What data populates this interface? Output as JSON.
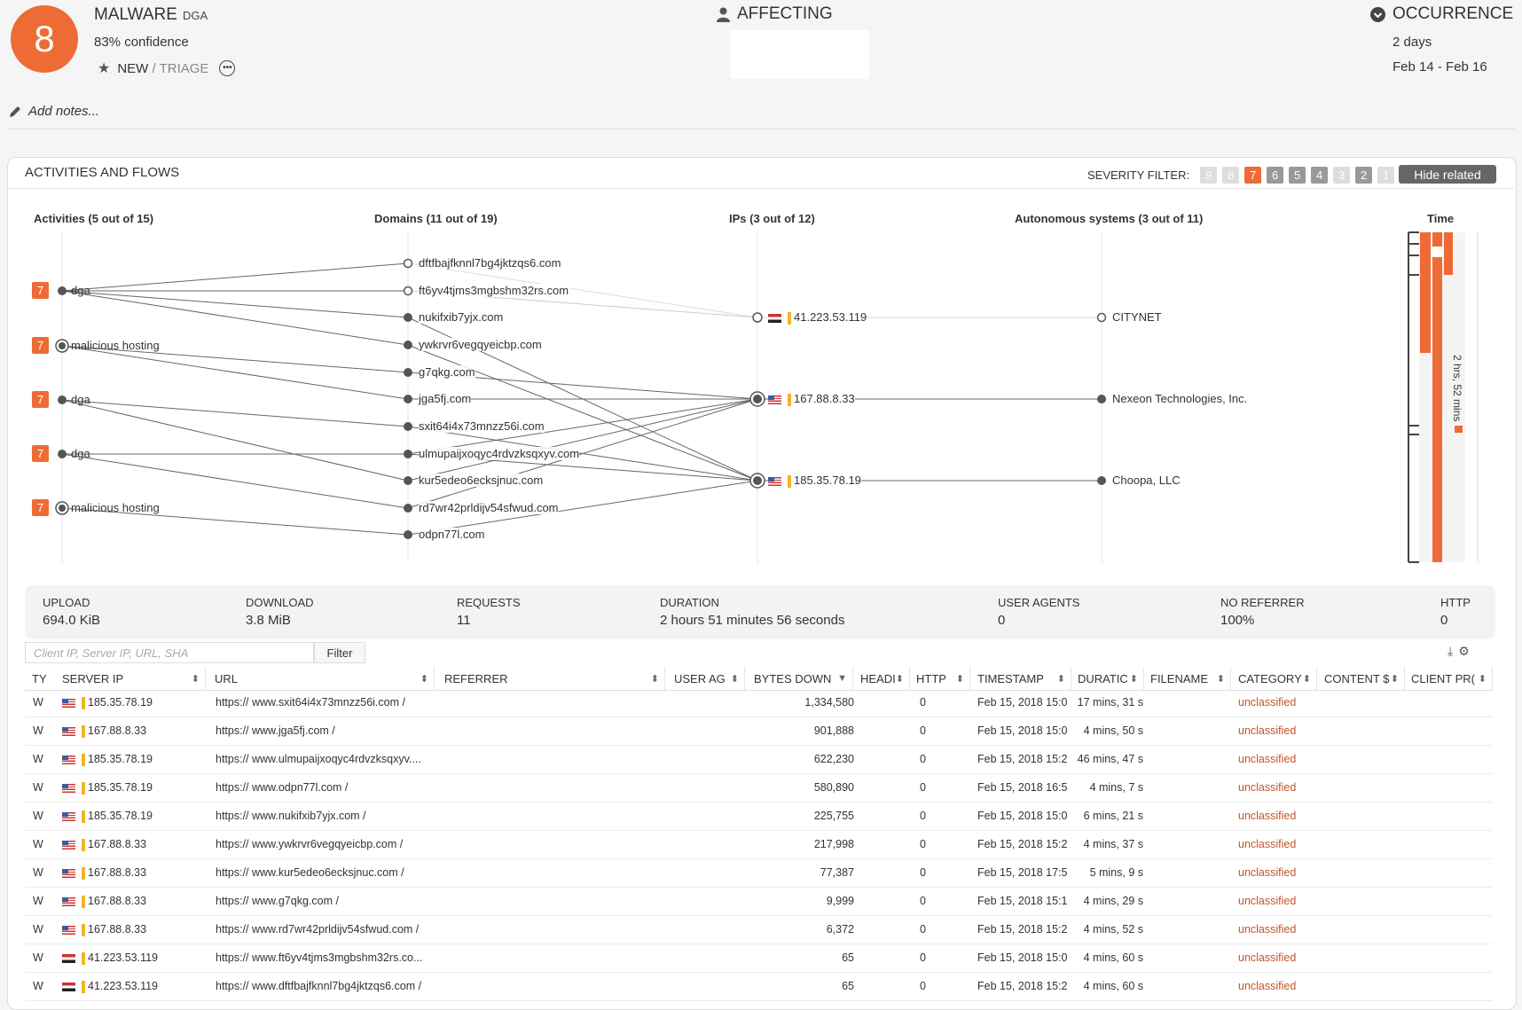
{
  "header": {
    "severity": "8",
    "title": "MALWARE",
    "subtitle": "DGA",
    "confidence": "83% confidence",
    "status_new": "NEW",
    "status_triage": "/ TRIAGE",
    "affecting_label": "AFFECTING",
    "occurrence_label": "OCCURRENCE",
    "occurrence_days": "2 days",
    "occurrence_range": "Feb 14 - Feb 16",
    "notes_placeholder": "Add notes..."
  },
  "panel": {
    "title": "ACTIVITIES AND FLOWS",
    "severity_filter_label": "SEVERITY FILTER:",
    "severity_levels": [
      {
        "label": "9",
        "color": "#dddddd"
      },
      {
        "label": "8",
        "color": "#dddddd"
      },
      {
        "label": "7",
        "color": "#ef6b35"
      },
      {
        "label": "6",
        "color": "#999999"
      },
      {
        "label": "5",
        "color": "#999999"
      },
      {
        "label": "4",
        "color": "#999999"
      },
      {
        "label": "3",
        "color": "#dddddd"
      },
      {
        "label": "2",
        "color": "#999999"
      },
      {
        "label": "1",
        "color": "#dddddd"
      }
    ],
    "hide_related": "Hide related"
  },
  "graph": {
    "headers": {
      "activities": "Activities (5 out of 15)",
      "domains": "Domains (11 out of 19)",
      "ips": "IPs (3 out of 12)",
      "as": "Autonomous systems (3 out of 11)",
      "time": "Time"
    },
    "activities": [
      {
        "severity": "7",
        "label": "dga"
      },
      {
        "severity": "7",
        "label": "malicious hosting"
      },
      {
        "severity": "7",
        "label": "dga"
      },
      {
        "severity": "7",
        "label": "dga"
      },
      {
        "severity": "7",
        "label": "malicious hosting"
      }
    ],
    "domains": [
      "dftfbajfknnl7bg4jktzqs6.com",
      "ft6yv4tjms3mgbshm32rs.com",
      "nukifxib7yjx.com",
      "ywkrvr6vegqyeicbp.com",
      "g7qkg.com",
      "jga5fj.com",
      "sxit64i4x73mnzz56i.com",
      "ulmupaijxoqyc4rdvzksqxyv.com",
      "kur5edeo6ecksjnuc.com",
      "rd7wr42prldijv54sfwud.com",
      "odpn77l.com"
    ],
    "ips": [
      "41.223.53.119",
      "167.88.8.33",
      "185.35.78.19"
    ],
    "as": [
      "CITYNET",
      "Nexeon Technologies, Inc.",
      "Choopa, LLC"
    ],
    "time_span": "2 hrs, 52 mins"
  },
  "stats": [
    {
      "label": "UPLOAD",
      "value": "694.0 KiB"
    },
    {
      "label": "DOWNLOAD",
      "value": "3.8 MiB"
    },
    {
      "label": "REQUESTS",
      "value": "11"
    },
    {
      "label": "DURATION",
      "value": "2 hours 51 minutes 56 seconds"
    },
    {
      "label": "USER AGENTS",
      "value": "0"
    },
    {
      "label": "NO REFERRER",
      "value": "100%"
    },
    {
      "label": "HTTP",
      "value": "0"
    }
  ],
  "filter": {
    "placeholder": "Client IP, Server IP, URL, SHA",
    "button": "Filter"
  },
  "table": {
    "columns": [
      "TY",
      "SERVER IP",
      "URL",
      "REFERRER",
      "USER AG",
      "BYTES DOWN",
      "HEADI",
      "HTTP",
      "TIMESTAMP",
      "DURATIC",
      "FILENAME",
      "CATEGORY",
      "CONTENT $",
      "CLIENT PR("
    ],
    "rows": [
      {
        "type": "W",
        "flag": "us",
        "ip": "185.35.78.19",
        "url": "https:// www.sxit64i4x73mnzz56i.com /",
        "bytes": "1,334,580",
        "http": "0",
        "timestamp": "Feb 15, 2018 15:0",
        "duration": "17 mins, 31 s",
        "category": "unclassified"
      },
      {
        "type": "W",
        "flag": "us",
        "ip": "167.88.8.33",
        "url": "https:// www.jga5fj.com /",
        "bytes": "901,888",
        "http": "0",
        "timestamp": "Feb 15, 2018 15:0",
        "duration": "4 mins, 50 s",
        "category": "unclassified"
      },
      {
        "type": "W",
        "flag": "us",
        "ip": "185.35.78.19",
        "url": "https:// www.ulmupaijxoqyc4rdvzksqxyv....",
        "bytes": "622,230",
        "http": "0",
        "timestamp": "Feb 15, 2018 15:2",
        "duration": "46 mins, 47 s",
        "category": "unclassified"
      },
      {
        "type": "W",
        "flag": "us",
        "ip": "185.35.78.19",
        "url": "https:// www.odpn77l.com /",
        "bytes": "580,890",
        "http": "0",
        "timestamp": "Feb 15, 2018 16:5",
        "duration": "4 mins, 7 s",
        "category": "unclassified"
      },
      {
        "type": "W",
        "flag": "us",
        "ip": "185.35.78.19",
        "url": "https:// www.nukifxib7yjx.com /",
        "bytes": "225,755",
        "http": "0",
        "timestamp": "Feb 15, 2018 15:0",
        "duration": "6 mins, 21 s",
        "category": "unclassified"
      },
      {
        "type": "W",
        "flag": "us",
        "ip": "167.88.8.33",
        "url": "https:// www.ywkrvr6vegqyeicbp.com /",
        "bytes": "217,998",
        "http": "0",
        "timestamp": "Feb 15, 2018 15:2",
        "duration": "4 mins, 37 s",
        "category": "unclassified"
      },
      {
        "type": "W",
        "flag": "us",
        "ip": "167.88.8.33",
        "url": "https:// www.kur5edeo6ecksjnuc.com /",
        "bytes": "77,387",
        "http": "0",
        "timestamp": "Feb 15, 2018 17:5",
        "duration": "5 mins, 9 s",
        "category": "unclassified"
      },
      {
        "type": "W",
        "flag": "us",
        "ip": "167.88.8.33",
        "url": "https:// www.g7qkg.com /",
        "bytes": "9,999",
        "http": "0",
        "timestamp": "Feb 15, 2018 15:1",
        "duration": "4 mins, 29 s",
        "category": "unclassified"
      },
      {
        "type": "W",
        "flag": "us",
        "ip": "167.88.8.33",
        "url": "https:// www.rd7wr42prldijv54sfwud.com /",
        "bytes": "6,372",
        "http": "0",
        "timestamp": "Feb 15, 2018 15:2",
        "duration": "4 mins, 52 s",
        "category": "unclassified"
      },
      {
        "type": "W",
        "flag": "eg",
        "ip": "41.223.53.119",
        "url": "https:// www.ft6yv4tjms3mgbshm32rs.co...",
        "bytes": "65",
        "http": "0",
        "timestamp": "Feb 15, 2018 15:0",
        "duration": "4 mins, 60 s",
        "category": "unclassified"
      },
      {
        "type": "W",
        "flag": "eg",
        "ip": "41.223.53.119",
        "url": "https:// www.dftfbajfknnl7bg4jktzqs6.com /",
        "bytes": "65",
        "http": "0",
        "timestamp": "Feb 15, 2018 15:2",
        "duration": "4 mins, 60 s",
        "category": "unclassified"
      }
    ]
  }
}
